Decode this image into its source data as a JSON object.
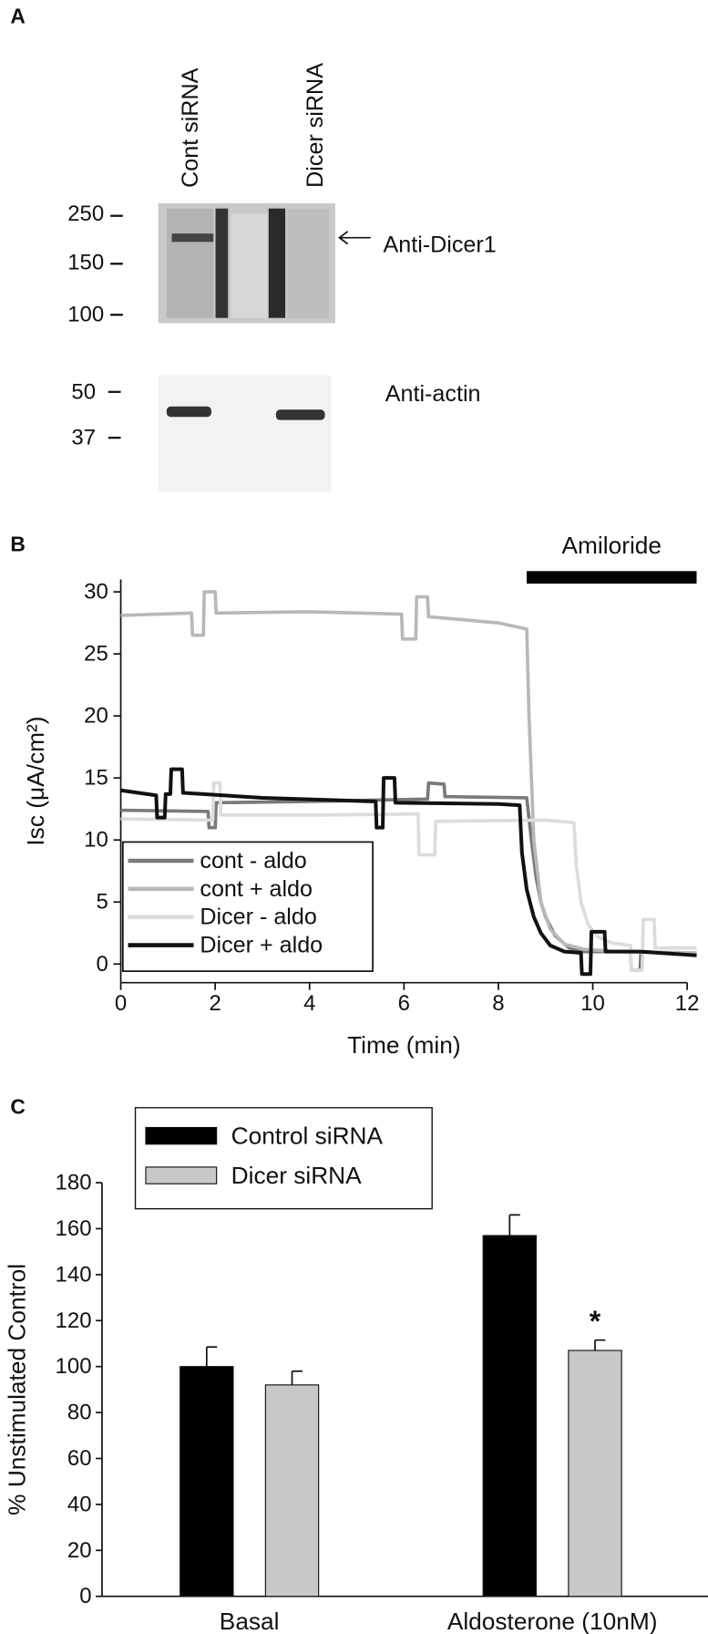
{
  "blot": {
    "panel_label": "A",
    "lanes": [
      "Cont siRNA",
      "Dicer siRNA"
    ],
    "upper_markers": [
      250,
      150,
      100
    ],
    "lower_markers": [
      50,
      37
    ],
    "upper_label": "Anti-Dicer1",
    "lower_label": "Anti-actin"
  },
  "chart_data": [
    {
      "type": "line",
      "panel_label": "B",
      "xlabel": "Time (min)",
      "ylabel": "Isc (μA/cm²)",
      "xlim": [
        0,
        12
      ],
      "xticks": [
        0,
        2,
        4,
        6,
        8,
        10,
        12
      ],
      "ylim": [
        -1.5,
        31
      ],
      "yticks": [
        0,
        5,
        10,
        15,
        20,
        25,
        30
      ],
      "legend": "lower left",
      "annotation": {
        "text": "Amiloride",
        "x_start": 8.6,
        "x_end": 12.2
      },
      "series": [
        {
          "name": "cont - aldo",
          "color": "#7a7a7a",
          "x": [
            0,
            1.85,
            1.87,
            2.0,
            2.02,
            4,
            6.5,
            6.52,
            6.85,
            6.87,
            8.6,
            8.7,
            8.8,
            8.9,
            9.0,
            9.2,
            9.5,
            9.8,
            10.5,
            10.8,
            10.82,
            11.0,
            11.02,
            12.2
          ],
          "values": [
            12.4,
            12.3,
            11,
            11,
            13,
            13.1,
            13.3,
            14.6,
            14.5,
            13.5,
            13.4,
            10,
            7,
            5,
            3.8,
            2.3,
            1.3,
            1.0,
            1.0,
            1.0,
            -0.5,
            -0.5,
            1.0,
            0.8
          ]
        },
        {
          "name": "cont + aldo",
          "color": "#b8b8b8",
          "x": [
            0,
            1.5,
            1.52,
            1.75,
            1.77,
            2.0,
            2.02,
            4,
            5.95,
            5.97,
            6.25,
            6.27,
            6.5,
            6.52,
            8.0,
            8.6,
            8.65,
            8.75,
            8.9,
            9.1,
            9.4,
            9.8,
            10.5,
            12.2
          ],
          "values": [
            28.1,
            28.3,
            26.5,
            26.5,
            30,
            30,
            28.3,
            28.4,
            28.2,
            26.2,
            26.2,
            29.6,
            29.6,
            28,
            27.5,
            27,
            20,
            10,
            5,
            2.8,
            1.6,
            1.2,
            1.0,
            0.9
          ]
        },
        {
          "name": "Dicer - aldo",
          "color": "#dcdcdc",
          "x": [
            0,
            1.95,
            1.97,
            2.1,
            2.12,
            4,
            6.3,
            6.32,
            6.65,
            6.67,
            9.0,
            9.6,
            9.65,
            9.75,
            9.9,
            10.1,
            10.4,
            10.8,
            10.82,
            11.05,
            11.07,
            11.3,
            11.32,
            12.2
          ],
          "values": [
            11.7,
            11.6,
            14.6,
            14.6,
            12,
            12,
            12.1,
            8.8,
            8.8,
            11.5,
            11.6,
            11.4,
            8,
            5,
            3.2,
            2.2,
            1.7,
            1.5,
            -0.5,
            -0.5,
            3.6,
            3.6,
            1.3,
            1.3
          ]
        },
        {
          "name": "Dicer + aldo",
          "color": "#111111",
          "x": [
            0,
            0.75,
            0.77,
            0.93,
            0.95,
            1.05,
            1.07,
            1.3,
            1.32,
            3,
            5.4,
            5.42,
            5.55,
            5.57,
            5.8,
            5.82,
            8.0,
            8.45,
            8.5,
            8.6,
            8.75,
            8.9,
            9.1,
            9.4,
            9.75,
            9.77,
            9.95,
            9.97,
            10.25,
            10.27,
            11,
            12.2
          ],
          "values": [
            14,
            13.6,
            11.8,
            11.8,
            13.7,
            13.7,
            15.7,
            15.7,
            13.8,
            13.4,
            13.1,
            11,
            11,
            15,
            15,
            13,
            12.9,
            12.8,
            9,
            6,
            3.8,
            2.5,
            1.5,
            1.0,
            0.9,
            -0.8,
            -0.8,
            2.6,
            2.6,
            1.0,
            1.0,
            0.7
          ]
        }
      ]
    },
    {
      "type": "bar",
      "panel_label": "C",
      "ylabel": "% Unstimulated Control",
      "categories": [
        "Basal",
        "Aldosterone (10nM)"
      ],
      "ylim": [
        0,
        180
      ],
      "yticks": [
        0,
        20,
        40,
        60,
        80,
        100,
        120,
        140,
        160,
        180
      ],
      "legend": "upper left",
      "series": [
        {
          "name": "Control siRNA",
          "color": "#000000",
          "values": [
            100,
            157
          ],
          "errors": [
            8.5,
            9
          ]
        },
        {
          "name": "Dicer siRNA",
          "color": "#c8c8c8",
          "values": [
            92,
            107
          ],
          "errors": [
            6,
            4.5
          ],
          "significance": [
            null,
            "*"
          ]
        }
      ]
    }
  ]
}
